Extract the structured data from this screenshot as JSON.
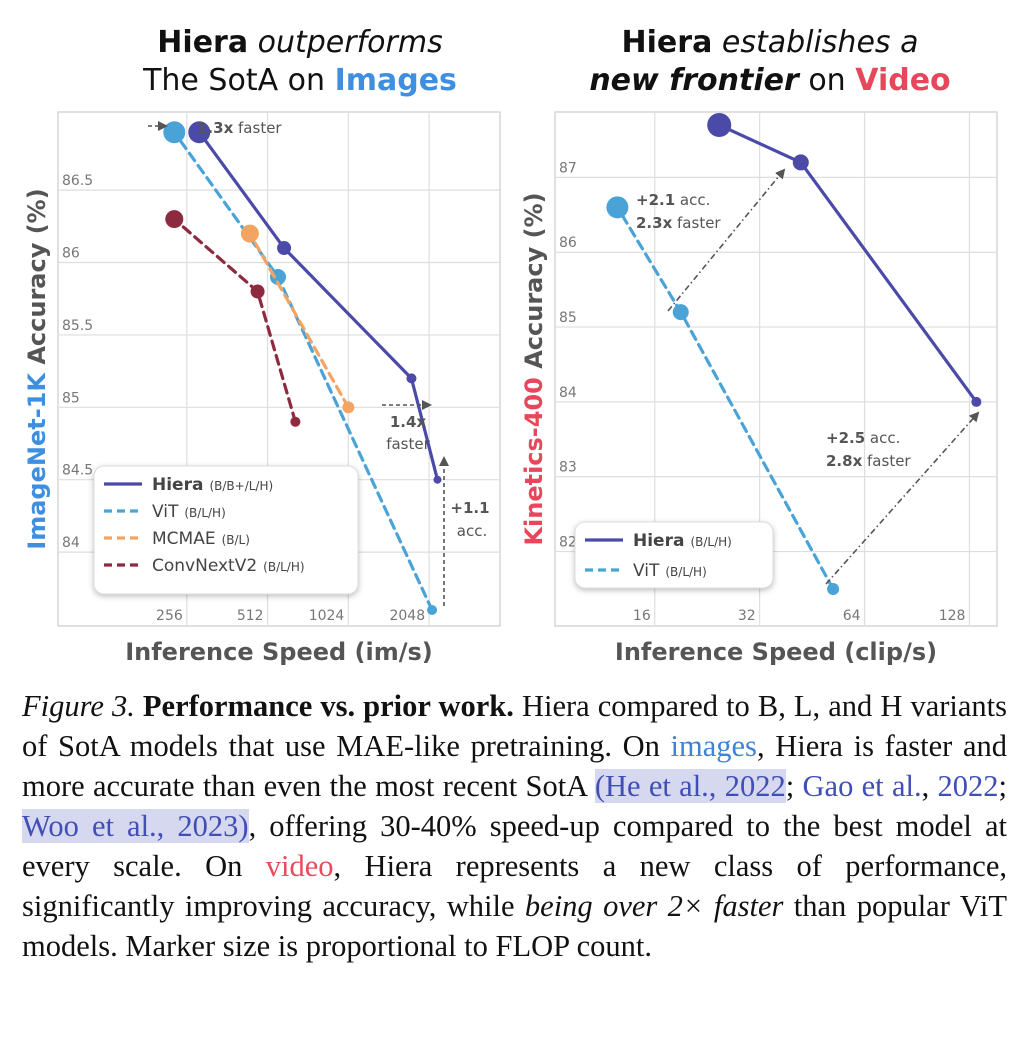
{
  "colors": {
    "hiera": "#4b4aa8",
    "vit": "#4aa3d6",
    "mcmae": "#f4a462",
    "convnext": "#8e2a3f",
    "images_accent": "#3f8fe0",
    "video_accent": "#e8475b",
    "annotation": "#555555",
    "axis_label": "#555555"
  },
  "chart_data": [
    {
      "type": "line",
      "title": {
        "line1_bold": "Hiera",
        "line1_italic": "outperforms",
        "line2_prefix": "The SotA on",
        "line2_highlight": "Images"
      },
      "xlabel": "Inference Speed (im/s)",
      "ylabel_highlight": "ImageNet-1K",
      "ylabel_rest": "Accuracy (%)",
      "x_scale": "log2",
      "xlim": [
        160,
        2450
      ],
      "ylim": [
        83.6,
        86.95
      ],
      "x_ticks": [
        256,
        512,
        1024,
        2048
      ],
      "x_tick_labels": [
        "256",
        "512",
        "1024",
        "2048"
      ],
      "y_ticks": [
        84,
        84.5,
        85,
        85.5,
        86,
        86.5
      ],
      "y_tick_labels": [
        "84",
        "84.5",
        "85",
        "85.5",
        "86",
        "86.5"
      ],
      "grid": true,
      "legend_position": "bottom-left",
      "series": [
        {
          "key": "hiera",
          "name": "Hiera",
          "name_suffix": "(B/B+/L/H)",
          "dash": "solid",
          "points": [
            {
              "x": 2200,
              "y": 84.5,
              "size": 4
            },
            {
              "x": 1760,
              "y": 85.2,
              "size": 5
            },
            {
              "x": 590,
              "y": 86.1,
              "size": 7
            },
            {
              "x": 285,
              "y": 86.9,
              "size": 11
            }
          ]
        },
        {
          "key": "vit",
          "name": "ViT",
          "name_suffix": "(B/L/H)",
          "dash": "dashed",
          "points": [
            {
              "x": 2100,
              "y": 83.6,
              "size": 5
            },
            {
              "x": 560,
              "y": 85.9,
              "size": 8
            },
            {
              "x": 230,
              "y": 86.9,
              "size": 11
            }
          ]
        },
        {
          "key": "mcmae",
          "name": "MCMAE",
          "name_suffix": "(B/L)",
          "dash": "dashed",
          "points": [
            {
              "x": 1024,
              "y": 85.0,
              "size": 6
            },
            {
              "x": 440,
              "y": 86.2,
              "size": 9
            }
          ]
        },
        {
          "key": "convnext",
          "name": "ConvNextV2",
          "name_suffix": "(B/L/H)",
          "dash": "dashed",
          "points": [
            {
              "x": 650,
              "y": 84.9,
              "size": 5
            },
            {
              "x": 470,
              "y": 85.8,
              "size": 7
            },
            {
              "x": 230,
              "y": 86.3,
              "size": 9
            }
          ]
        }
      ],
      "annotations": [
        {
          "bold": "1.3x",
          "text": "faster"
        },
        {
          "bold": "1.4x",
          "text": "faster"
        },
        {
          "bold": "+1.1",
          "text": "acc."
        }
      ]
    },
    {
      "type": "line",
      "title": {
        "line1_bold": "Hiera",
        "line1_italic": "establishes a",
        "line2_bold_italic": "new frontier",
        "line2_on": "on",
        "line2_highlight": "Video"
      },
      "xlabel": "Inference Speed (clip/s)",
      "ylabel_highlight": "Kinetics-400",
      "ylabel_rest": "Accuracy (%)",
      "x_scale": "log2",
      "xlim": [
        10.5,
        140
      ],
      "ylim": [
        81.5,
        87.7
      ],
      "x_ticks": [
        16,
        32,
        64,
        128
      ],
      "x_tick_labels": [
        "16",
        "32",
        "64",
        "128"
      ],
      "y_ticks": [
        82,
        83,
        84,
        85,
        86,
        87
      ],
      "y_tick_labels": [
        "82",
        "83",
        "84",
        "85",
        "86",
        "87"
      ],
      "grid": true,
      "legend_position": "bottom-left",
      "series": [
        {
          "key": "hiera",
          "name": "Hiera",
          "name_suffix": "(B/L/H)",
          "dash": "solid",
          "points": [
            {
              "x": 134,
              "y": 84.0,
              "size": 5
            },
            {
              "x": 42,
              "y": 87.2,
              "size": 8
            },
            {
              "x": 24.5,
              "y": 87.7,
              "size": 12
            }
          ]
        },
        {
          "key": "vit",
          "name": "ViT",
          "name_suffix": "(B/L/H)",
          "dash": "dashed",
          "points": [
            {
              "x": 52,
              "y": 81.5,
              "size": 6
            },
            {
              "x": 19,
              "y": 85.2,
              "size": 8
            },
            {
              "x": 12.5,
              "y": 86.6,
              "size": 11
            }
          ]
        }
      ],
      "annotations": [
        {
          "bold": "+2.1",
          "text": "acc.",
          "bold2": "2.3x",
          "text2": "faster"
        },
        {
          "bold": "+2.5",
          "text": "acc.",
          "bold2": "2.8x",
          "text2": "faster"
        }
      ]
    }
  ],
  "caption": {
    "fig_label": "Figure 3.",
    "bold_title": "Performance vs. prior work.",
    "text1": "Hiera compared to B, L, and H variants of SotA models that use MAE-like pretraining. On",
    "link_images": "images",
    "text2": ", Hiera is faster and more accurate than even the most recent SotA",
    "paren_open": "(",
    "cite1": "He et al., 2022",
    "sep1": ";",
    "cite2a": "Gao et al.",
    "comma": ",",
    "cite2b": "2022",
    "sep2": ";",
    "cite3": "Woo et al., 2023",
    "paren_close": ")",
    "text3": ", offering 30-40% speed-up compared to the best model at every scale. On",
    "link_video": "video",
    "text4": ", Hiera represents a new class of performance, significantly improving accuracy, while",
    "italic_phrase": "being over 2× faster",
    "text5": "than popular ViT models. Marker size is proportional to FLOP count."
  }
}
